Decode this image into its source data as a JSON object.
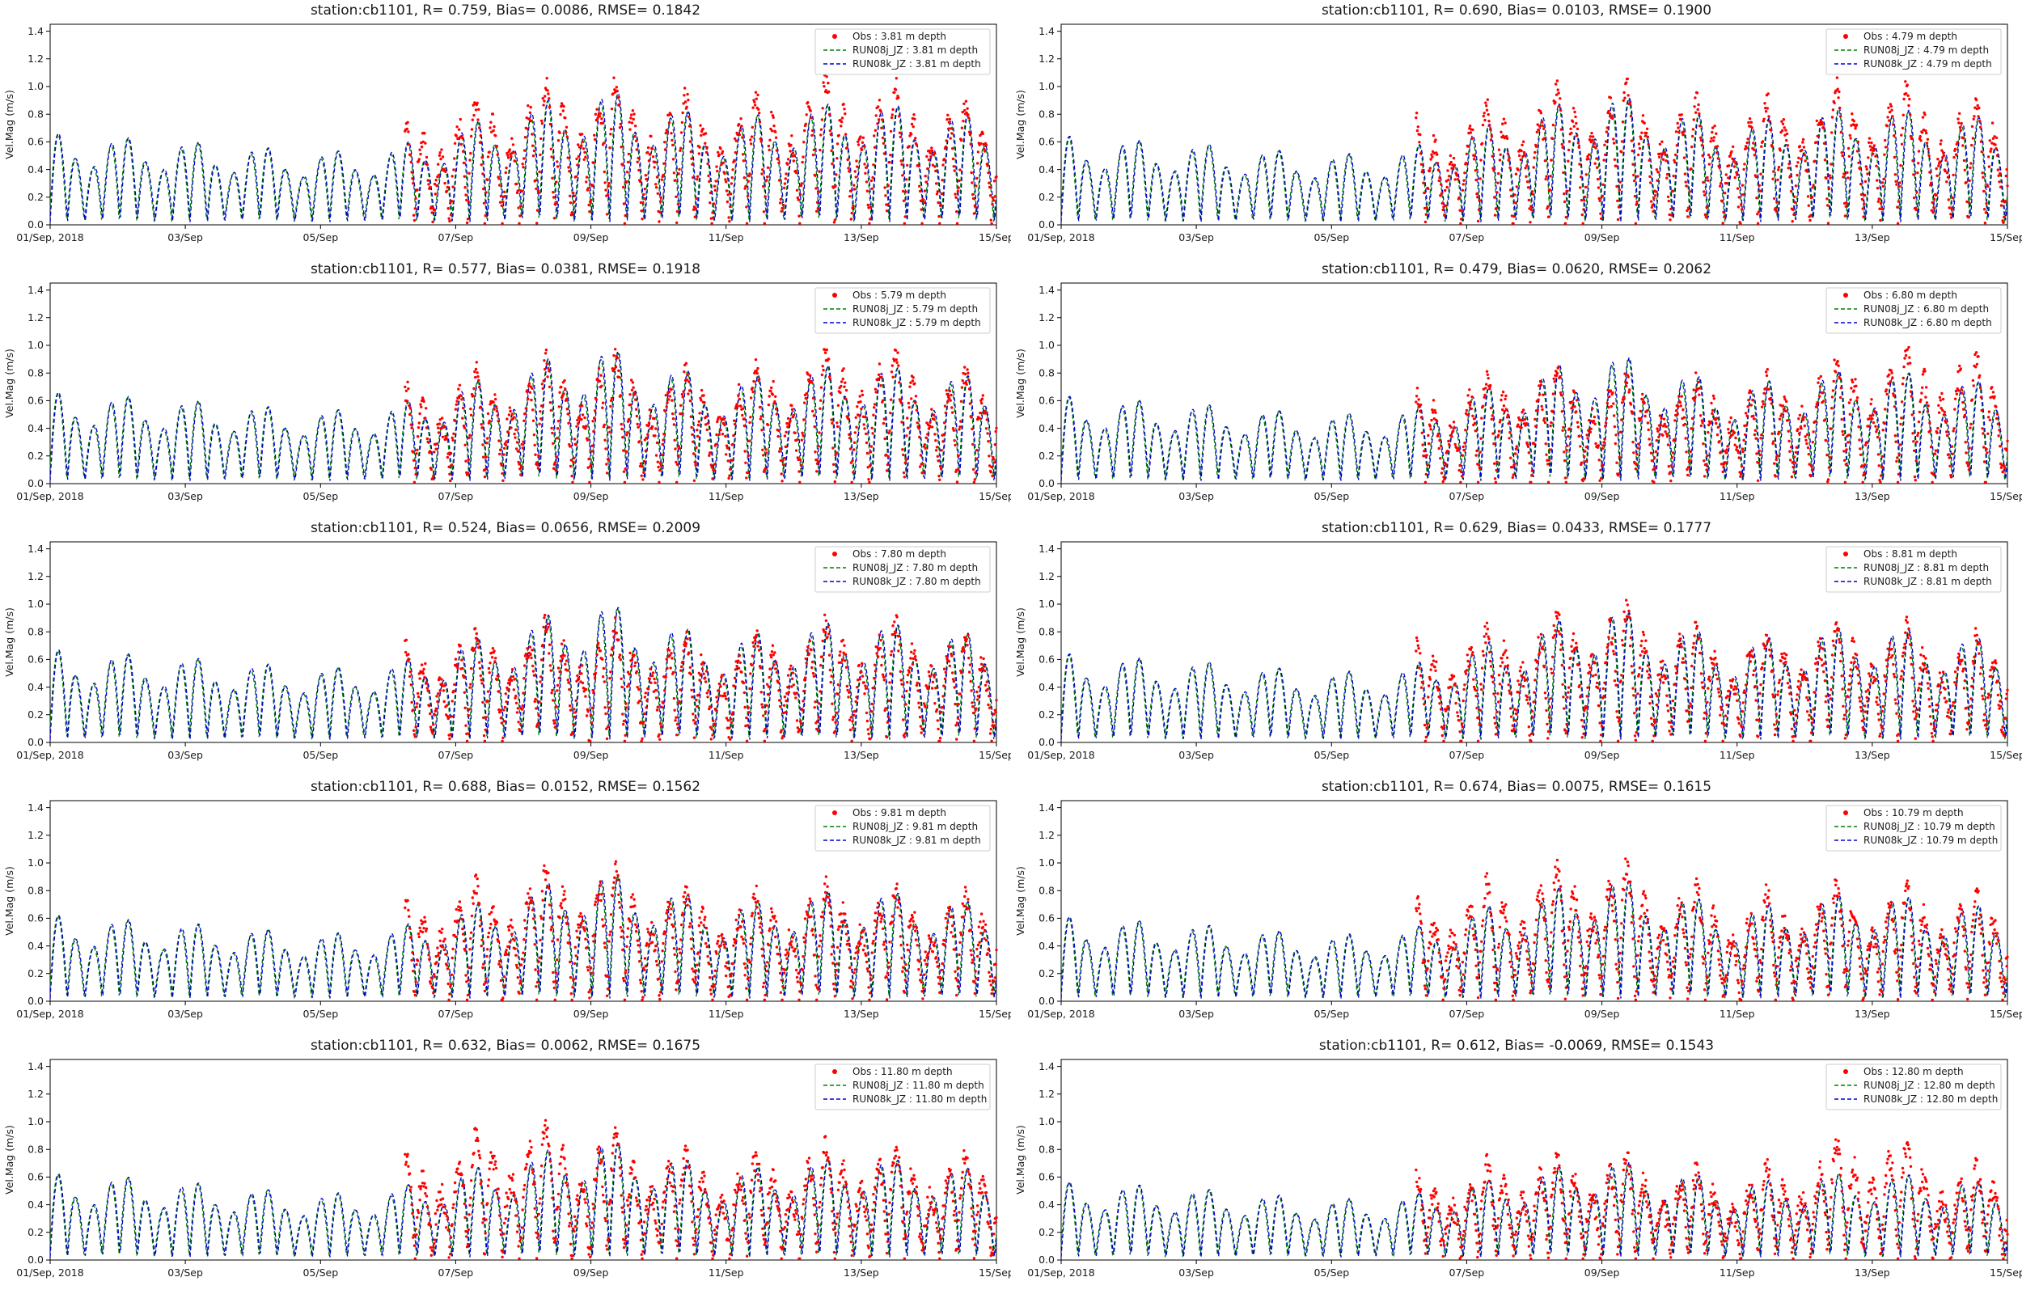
{
  "figure": {
    "station": "cb1101",
    "ylabel": "Vel.Mag (m/s)",
    "x_tick_labels": [
      "01/Sep, 2018",
      "03/Sep",
      "05/Sep",
      "07/Sep",
      "09/Sep",
      "11/Sep",
      "13/Sep",
      "15/Sep"
    ],
    "x_tick_days": [
      0,
      2,
      4,
      6,
      8,
      10,
      12,
      14
    ],
    "y_tick_labels": [
      "0.0",
      "0.2",
      "0.4",
      "0.6",
      "0.8",
      "1.0",
      "1.2",
      "1.4"
    ],
    "y_ticks": [
      0.0,
      0.2,
      0.4,
      0.6,
      0.8,
      1.0,
      1.2,
      1.4
    ],
    "ylim": [
      0,
      1.45
    ],
    "x_span_days": 14,
    "colors": {
      "obs": "#ff0000",
      "run08j": "#007f00",
      "run08k": "#0000cd",
      "legend_edge": "#cccccc",
      "axis": "#000000"
    },
    "signal": {
      "tidal_period_days": 0.5175,
      "inequality_period_days": 1.0347,
      "obs_noise": 0.085,
      "obs_start_day": 5.25
    }
  },
  "chart_data": [
    {
      "type": "line+scatter",
      "title": "station:cb1101, R= 0.759, Bias= 0.0086, RMSE= 0.1842",
      "stats": {
        "R": 0.759,
        "Bias": 0.0086,
        "RMSE": 0.1842
      },
      "depth_label": "3.81 m depth",
      "legend": [
        "Obs : 3.81 m depth",
        "RUN08j_JZ : 3.81 m depth",
        "RUN08k_JZ : 3.81 m depth"
      ],
      "model_envelope_daily": [
        0.66,
        0.63,
        0.6,
        0.56,
        0.52,
        0.55,
        0.7,
        0.85,
        1.0,
        0.88,
        0.75,
        0.85,
        0.9,
        0.83,
        0.78
      ],
      "obs_envelope_daily": [
        0.65,
        0.65,
        0.65,
        0.65,
        0.65,
        0.68,
        0.84,
        0.96,
        1.06,
        0.94,
        0.84,
        1.0,
        1.05,
        0.9,
        0.82
      ],
      "obs_start_day": 5.25
    },
    {
      "type": "line+scatter",
      "title": "station:cb1101, R= 0.690, Bias= 0.0103, RMSE= 0.1900",
      "stats": {
        "R": 0.69,
        "Bias": 0.0103,
        "RMSE": 0.19
      },
      "depth_label": "4.79 m depth",
      "legend": [
        "Obs : 4.79 m depth",
        "RUN08j_JZ : 4.79 m depth",
        "RUN08k_JZ : 4.79 m depth"
      ],
      "model_envelope_daily": [
        0.64,
        0.61,
        0.58,
        0.54,
        0.5,
        0.53,
        0.68,
        0.82,
        0.97,
        0.85,
        0.73,
        0.82,
        0.87,
        0.8,
        0.76
      ],
      "obs_envelope_daily": [
        0.65,
        0.65,
        0.65,
        0.65,
        0.65,
        0.66,
        0.82,
        0.94,
        1.04,
        0.92,
        0.82,
        0.94,
        1.0,
        0.92,
        0.82
      ],
      "obs_start_day": 5.25
    },
    {
      "type": "line+scatter",
      "title": "station:cb1101, R= 0.577, Bias= 0.0381, RMSE= 0.1918",
      "stats": {
        "R": 0.577,
        "Bias": 0.0381,
        "RMSE": 0.1918
      },
      "depth_label": "5.79 m depth",
      "legend": [
        "Obs : 5.79 m depth",
        "RUN08j_JZ : 5.79 m depth",
        "RUN08k_JZ : 5.79 m depth"
      ],
      "model_envelope_daily": [
        0.66,
        0.63,
        0.6,
        0.56,
        0.52,
        0.55,
        0.7,
        0.84,
        1.02,
        0.87,
        0.74,
        0.83,
        0.88,
        0.81,
        0.76
      ],
      "obs_envelope_daily": [
        0.6,
        0.6,
        0.6,
        0.6,
        0.6,
        0.62,
        0.76,
        0.84,
        0.92,
        0.8,
        0.74,
        0.88,
        1.02,
        0.84,
        0.74
      ],
      "obs_start_day": 5.25
    },
    {
      "type": "line+scatter",
      "title": "station:cb1101, R= 0.479, Bias= 0.0620, RMSE= 0.2062",
      "stats": {
        "R": 0.479,
        "Bias": 0.062,
        "RMSE": 0.2062
      },
      "depth_label": "6.80 m depth",
      "legend": [
        "Obs : 6.80 m depth",
        "RUN08j_JZ : 6.80 m depth",
        "RUN08k_JZ : 6.80 m depth"
      ],
      "model_envelope_daily": [
        0.63,
        0.6,
        0.57,
        0.53,
        0.49,
        0.52,
        0.66,
        0.8,
        0.97,
        0.83,
        0.7,
        0.79,
        0.84,
        0.77,
        0.72
      ],
      "obs_envelope_daily": [
        0.58,
        0.58,
        0.58,
        0.58,
        0.58,
        0.6,
        0.72,
        0.8,
        0.78,
        0.72,
        0.68,
        0.82,
        0.92,
        0.98,
        0.78
      ],
      "obs_start_day": 5.25
    },
    {
      "type": "line+scatter",
      "title": "station:cb1101, R= 0.524, Bias= 0.0656, RMSE= 0.2009",
      "stats": {
        "R": 0.524,
        "Bias": 0.0656,
        "RMSE": 0.2009
      },
      "depth_label": "7.80 m depth",
      "legend": [
        "Obs : 7.80 m depth",
        "RUN08j_JZ : 7.80 m depth",
        "RUN08k_JZ : 7.80 m depth"
      ],
      "model_envelope_daily": [
        0.67,
        0.64,
        0.61,
        0.57,
        0.53,
        0.56,
        0.71,
        0.85,
        1.05,
        0.88,
        0.75,
        0.84,
        0.89,
        0.82,
        0.77
      ],
      "obs_envelope_daily": [
        0.58,
        0.58,
        0.58,
        0.58,
        0.58,
        0.62,
        0.76,
        0.82,
        0.86,
        0.76,
        0.7,
        0.8,
        0.86,
        0.8,
        0.7
      ],
      "obs_start_day": 5.25
    },
    {
      "type": "line+scatter",
      "title": "station:cb1101, R= 0.629, Bias= 0.0433, RMSE= 0.1777",
      "stats": {
        "R": 0.629,
        "Bias": 0.0433,
        "RMSE": 0.1777
      },
      "depth_label": "8.81 m depth",
      "legend": [
        "Obs : 8.81 m depth",
        "RUN08j_JZ : 8.81 m depth",
        "RUN08k_JZ : 8.81 m depth"
      ],
      "model_envelope_daily": [
        0.64,
        0.61,
        0.58,
        0.54,
        0.5,
        0.53,
        0.68,
        0.82,
        1.0,
        0.86,
        0.72,
        0.8,
        0.85,
        0.78,
        0.73
      ],
      "obs_envelope_daily": [
        0.58,
        0.58,
        0.58,
        0.58,
        0.58,
        0.62,
        0.76,
        0.86,
        1.0,
        0.86,
        0.72,
        0.82,
        0.86,
        0.76,
        0.7
      ],
      "obs_start_day": 5.25
    },
    {
      "type": "line+scatter",
      "title": "station:cb1101, R= 0.688, Bias= 0.0152, RMSE= 0.1562",
      "stats": {
        "R": 0.688,
        "Bias": 0.0152,
        "RMSE": 0.1562
      },
      "depth_label": "9.81 m depth",
      "legend": [
        "Obs : 9.81 m depth",
        "RUN08j_JZ : 9.81 m depth",
        "RUN08k_JZ : 9.81 m depth"
      ],
      "model_envelope_daily": [
        0.62,
        0.59,
        0.56,
        0.52,
        0.48,
        0.51,
        0.66,
        0.79,
        0.97,
        0.83,
        0.69,
        0.77,
        0.82,
        0.75,
        0.7
      ],
      "obs_envelope_daily": [
        0.58,
        0.58,
        0.58,
        0.58,
        0.58,
        0.62,
        0.8,
        0.88,
        1.0,
        0.84,
        0.7,
        0.78,
        0.84,
        0.76,
        0.7
      ],
      "obs_start_day": 5.25
    },
    {
      "type": "line+scatter",
      "title": "station:cb1101, R= 0.674, Bias= 0.0075, RMSE= 0.1615",
      "stats": {
        "R": 0.674,
        "Bias": 0.0075,
        "RMSE": 0.1615
      },
      "depth_label": "10.79 m depth",
      "legend": [
        "Obs : 10.79 m depth",
        "RUN08j_JZ : 10.79 m depth",
        "RUN08k_JZ : 10.79 m depth"
      ],
      "model_envelope_daily": [
        0.61,
        0.58,
        0.55,
        0.51,
        0.47,
        0.5,
        0.64,
        0.77,
        0.93,
        0.8,
        0.66,
        0.74,
        0.79,
        0.72,
        0.67
      ],
      "obs_envelope_daily": [
        0.58,
        0.58,
        0.58,
        0.58,
        0.58,
        0.62,
        0.8,
        0.92,
        1.0,
        0.86,
        0.7,
        0.8,
        0.84,
        0.76,
        0.7
      ],
      "obs_start_day": 5.25
    },
    {
      "type": "line+scatter",
      "title": "station:cb1101, R= 0.632, Bias= 0.0062, RMSE= 0.1675",
      "stats": {
        "R": 0.632,
        "Bias": 0.0062,
        "RMSE": 0.1675
      },
      "depth_label": "11.80 m depth",
      "legend": [
        "Obs : 11.80 m depth",
        "RUN08j_JZ : 11.80 m depth",
        "RUN08k_JZ : 11.80 m depth"
      ],
      "model_envelope_daily": [
        0.62,
        0.6,
        0.56,
        0.51,
        0.47,
        0.5,
        0.63,
        0.74,
        0.9,
        0.78,
        0.64,
        0.71,
        0.76,
        0.69,
        0.64
      ],
      "obs_envelope_daily": [
        0.58,
        0.58,
        0.58,
        0.58,
        0.58,
        0.64,
        0.84,
        1.0,
        0.9,
        0.78,
        0.68,
        0.78,
        0.84,
        0.76,
        0.68
      ],
      "obs_start_day": 5.25
    },
    {
      "type": "line+scatter",
      "title": "station:cb1101, R= 0.612, Bias= -0.0069, RMSE= 0.1543",
      "stats": {
        "R": 0.612,
        "Bias": -0.0069,
        "RMSE": 0.1543
      },
      "depth_label": "12.80 m depth",
      "legend": [
        "Obs : 12.80 m depth",
        "RUN08j_JZ : 12.80 m depth",
        "RUN08k_JZ : 12.80 m depth"
      ],
      "model_envelope_daily": [
        0.56,
        0.54,
        0.51,
        0.47,
        0.43,
        0.45,
        0.55,
        0.63,
        0.74,
        0.65,
        0.55,
        0.6,
        0.64,
        0.59,
        0.55
      ],
      "obs_envelope_daily": [
        0.5,
        0.5,
        0.5,
        0.5,
        0.5,
        0.52,
        0.64,
        0.72,
        0.74,
        0.64,
        0.58,
        0.7,
        0.92,
        0.7,
        0.58
      ],
      "obs_start_day": 5.25
    }
  ]
}
